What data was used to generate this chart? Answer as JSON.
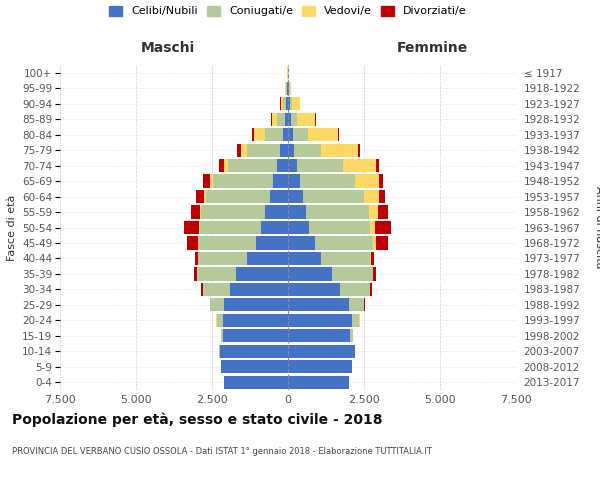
{
  "age_groups": [
    "0-4",
    "5-9",
    "10-14",
    "15-19",
    "20-24",
    "25-29",
    "30-34",
    "35-39",
    "40-44",
    "45-49",
    "50-54",
    "55-59",
    "60-64",
    "65-69",
    "70-74",
    "75-79",
    "80-84",
    "85-89",
    "90-94",
    "95-99",
    "100+"
  ],
  "birth_years": [
    "2013-2017",
    "2008-2012",
    "2003-2007",
    "1998-2002",
    "1993-1997",
    "1988-1992",
    "1983-1987",
    "1978-1982",
    "1973-1977",
    "1968-1972",
    "1963-1967",
    "1958-1962",
    "1953-1957",
    "1948-1952",
    "1943-1947",
    "1938-1942",
    "1933-1937",
    "1928-1932",
    "1923-1927",
    "1918-1922",
    "≤ 1917"
  ],
  "males": {
    "celibi": [
      2100,
      2200,
      2250,
      2150,
      2150,
      2100,
      1900,
      1700,
      1350,
      1050,
      900,
      750,
      600,
      480,
      370,
      250,
      170,
      100,
      60,
      30,
      10
    ],
    "coniugati": [
      2,
      5,
      10,
      50,
      200,
      450,
      900,
      1300,
      1600,
      1900,
      2000,
      2100,
      2100,
      2000,
      1600,
      1100,
      600,
      250,
      100,
      30,
      5
    ],
    "vedovi": [
      0,
      0,
      0,
      0,
      2,
      2,
      2,
      5,
      5,
      10,
      20,
      40,
      60,
      100,
      150,
      200,
      350,
      180,
      80,
      30,
      5
    ],
    "divorziati": [
      0,
      0,
      0,
      2,
      5,
      20,
      50,
      80,
      120,
      350,
      500,
      300,
      280,
      200,
      160,
      120,
      50,
      20,
      10,
      5,
      0
    ]
  },
  "females": {
    "celibi": [
      2000,
      2100,
      2200,
      2050,
      2100,
      2000,
      1700,
      1450,
      1100,
      900,
      700,
      600,
      500,
      400,
      300,
      200,
      150,
      100,
      60,
      30,
      10
    ],
    "coniugati": [
      2,
      5,
      15,
      80,
      250,
      500,
      1000,
      1350,
      1600,
      1900,
      2000,
      2050,
      2000,
      1800,
      1500,
      900,
      500,
      200,
      80,
      20,
      5
    ],
    "vedove": [
      0,
      0,
      0,
      0,
      2,
      2,
      5,
      10,
      20,
      80,
      150,
      300,
      500,
      800,
      1100,
      1200,
      1000,
      600,
      250,
      50,
      5
    ],
    "divorziate": [
      0,
      0,
      0,
      2,
      5,
      15,
      50,
      80,
      120,
      400,
      550,
      350,
      200,
      120,
      100,
      80,
      40,
      20,
      10,
      5,
      0
    ]
  },
  "colors": {
    "celibi": "#4472C4",
    "coniugati": "#B5C99A",
    "vedovi": "#FFD966",
    "divorziati": "#C00000"
  },
  "xlim": 7500,
  "xticks": [
    -7500,
    -5000,
    -2500,
    0,
    2500,
    5000,
    7500
  ],
  "xticklabels": [
    "7.500",
    "5.000",
    "2.500",
    "0",
    "2.500",
    "5.000",
    "7.500"
  ],
  "title": "Popolazione per età, sesso e stato civile - 2018",
  "subtitle": "PROVINCIA DEL VERBANO CUSIO OSSOLA - Dati ISTAT 1° gennaio 2018 - Elaborazione TUTTITALIA.IT",
  "ylabel_left": "Fasce di età",
  "ylabel_right": "Anni di nascita",
  "legend_labels": [
    "Celibi/Nubili",
    "Coniugati/e",
    "Vedovi/e",
    "Divorziati/e"
  ],
  "maschi_label": "Maschi",
  "femmine_label": "Femmine",
  "background_color": "#FFFFFF",
  "grid_color": "#CCCCCC"
}
